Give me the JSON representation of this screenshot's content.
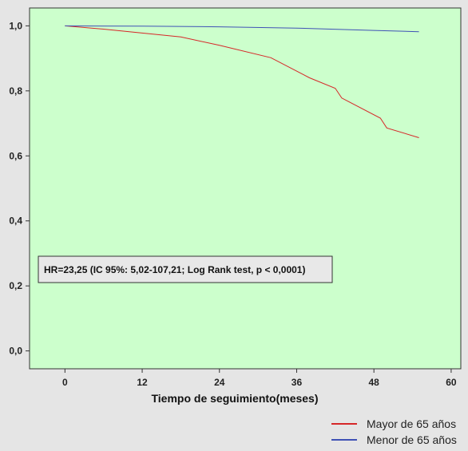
{
  "chart_data": {
    "type": "line",
    "title": "",
    "xlabel": "Tiempo de seguimiento(meses)",
    "ylabel": "",
    "xlim": [
      -5.5,
      61.5
    ],
    "ylim": [
      -0.055,
      1.055
    ],
    "x_ticks": [
      0,
      12,
      24,
      36,
      48,
      60
    ],
    "y_ticks": [
      0.0,
      0.2,
      0.4,
      0.6,
      0.8,
      1.0
    ],
    "x_tick_labels": [
      "0",
      "12",
      "24",
      "36",
      "48",
      "60"
    ],
    "y_tick_labels": [
      "0,0",
      "0,2",
      "0,4",
      "0,6",
      "0,8",
      "1,0"
    ],
    "grid": false,
    "plot_background": "#ccffcc",
    "annotation": "HR=23,25 (IC 95%: 5,02-107,21; Log Rank test, p < 0,0001)",
    "legend_position": "bottom-right",
    "series": [
      {
        "name": "Mayor de 65 años",
        "color": "#d62728",
        "x": [
          0,
          6,
          12,
          18,
          24,
          32,
          38,
          42,
          43,
          49,
          50,
          55
        ],
        "y": [
          1.0,
          0.99,
          0.978,
          0.966,
          0.94,
          0.902,
          0.84,
          0.808,
          0.778,
          0.716,
          0.686,
          0.656
        ]
      },
      {
        "name": "Menor de 65 años",
        "color": "#3f51b5",
        "x": [
          0,
          12,
          24,
          36,
          48,
          55
        ],
        "y": [
          1.0,
          0.999,
          0.997,
          0.993,
          0.986,
          0.982
        ]
      }
    ]
  }
}
